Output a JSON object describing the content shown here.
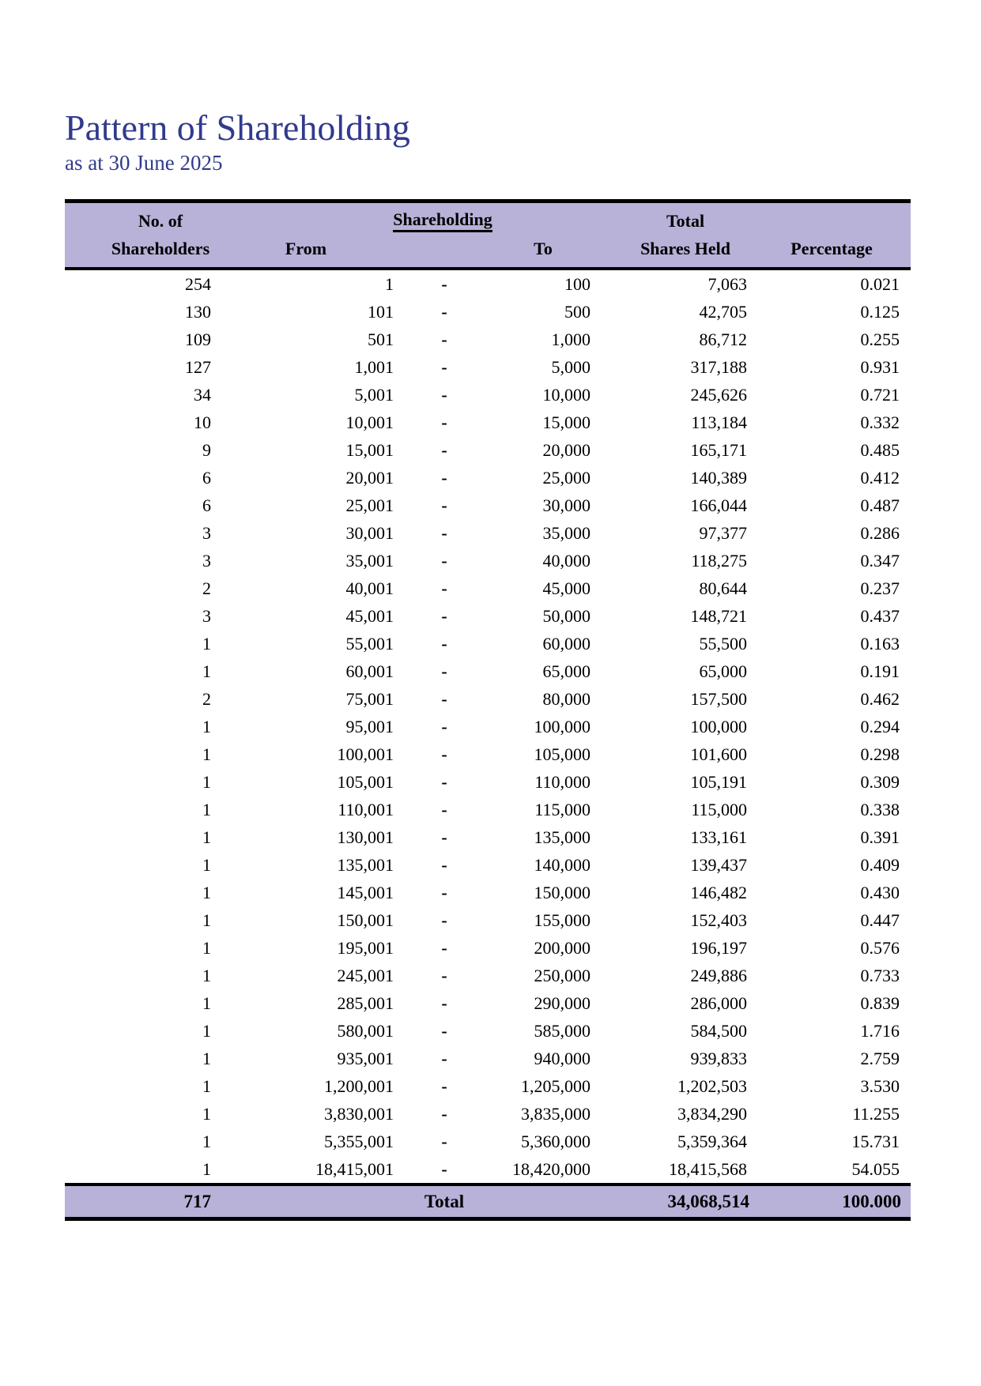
{
  "page": {
    "title": "Pattern of Shareholding",
    "subtitle": "as at 30 June 2025"
  },
  "colors": {
    "title_text": "#313a8d",
    "table_header_bg": "#b8b1d8",
    "table_border": "#000000",
    "body_text": "#000000",
    "page_bg": "#ffffff"
  },
  "table": {
    "headers": {
      "col1_line1": "No. of",
      "col1_line2": "Shareholders",
      "group": "Shareholding",
      "from": "From",
      "to": "To",
      "col5_line1": "Total",
      "col5_line2": "Shares Held",
      "percentage": "Percentage"
    },
    "range_separator": "-",
    "rows": [
      {
        "shareholders": "254",
        "from": "1",
        "to": "100",
        "shares_held": "7,063",
        "percentage": "0.021"
      },
      {
        "shareholders": "130",
        "from": "101",
        "to": "500",
        "shares_held": "42,705",
        "percentage": "0.125"
      },
      {
        "shareholders": "109",
        "from": "501",
        "to": "1,000",
        "shares_held": "86,712",
        "percentage": "0.255"
      },
      {
        "shareholders": "127",
        "from": "1,001",
        "to": "5,000",
        "shares_held": "317,188",
        "percentage": "0.931"
      },
      {
        "shareholders": "34",
        "from": "5,001",
        "to": "10,000",
        "shares_held": "245,626",
        "percentage": "0.721"
      },
      {
        "shareholders": "10",
        "from": "10,001",
        "to": "15,000",
        "shares_held": "113,184",
        "percentage": "0.332"
      },
      {
        "shareholders": "9",
        "from": "15,001",
        "to": "20,000",
        "shares_held": "165,171",
        "percentage": "0.485"
      },
      {
        "shareholders": "6",
        "from": "20,001",
        "to": "25,000",
        "shares_held": "140,389",
        "percentage": "0.412"
      },
      {
        "shareholders": "6",
        "from": "25,001",
        "to": "30,000",
        "shares_held": "166,044",
        "percentage": "0.487"
      },
      {
        "shareholders": "3",
        "from": "30,001",
        "to": "35,000",
        "shares_held": "97,377",
        "percentage": "0.286"
      },
      {
        "shareholders": "3",
        "from": "35,001",
        "to": "40,000",
        "shares_held": "118,275",
        "percentage": "0.347"
      },
      {
        "shareholders": "2",
        "from": "40,001",
        "to": "45,000",
        "shares_held": "80,644",
        "percentage": "0.237"
      },
      {
        "shareholders": "3",
        "from": "45,001",
        "to": "50,000",
        "shares_held": "148,721",
        "percentage": "0.437"
      },
      {
        "shareholders": "1",
        "from": "55,001",
        "to": "60,000",
        "shares_held": "55,500",
        "percentage": "0.163"
      },
      {
        "shareholders": "1",
        "from": "60,001",
        "to": "65,000",
        "shares_held": "65,000",
        "percentage": "0.191"
      },
      {
        "shareholders": "2",
        "from": "75,001",
        "to": "80,000",
        "shares_held": "157,500",
        "percentage": "0.462"
      },
      {
        "shareholders": "1",
        "from": "95,001",
        "to": "100,000",
        "shares_held": "100,000",
        "percentage": "0.294"
      },
      {
        "shareholders": "1",
        "from": "100,001",
        "to": "105,000",
        "shares_held": "101,600",
        "percentage": "0.298"
      },
      {
        "shareholders": "1",
        "from": "105,001",
        "to": "110,000",
        "shares_held": "105,191",
        "percentage": "0.309"
      },
      {
        "shareholders": "1",
        "from": "110,001",
        "to": "115,000",
        "shares_held": "115,000",
        "percentage": "0.338"
      },
      {
        "shareholders": "1",
        "from": "130,001",
        "to": "135,000",
        "shares_held": "133,161",
        "percentage": "0.391"
      },
      {
        "shareholders": "1",
        "from": "135,001",
        "to": "140,000",
        "shares_held": "139,437",
        "percentage": "0.409"
      },
      {
        "shareholders": "1",
        "from": "145,001",
        "to": "150,000",
        "shares_held": "146,482",
        "percentage": "0.430"
      },
      {
        "shareholders": "1",
        "from": "150,001",
        "to": "155,000",
        "shares_held": "152,403",
        "percentage": "0.447"
      },
      {
        "shareholders": "1",
        "from": "195,001",
        "to": "200,000",
        "shares_held": "196,197",
        "percentage": "0.576"
      },
      {
        "shareholders": "1",
        "from": "245,001",
        "to": "250,000",
        "shares_held": "249,886",
        "percentage": "0.733"
      },
      {
        "shareholders": "1",
        "from": "285,001",
        "to": "290,000",
        "shares_held": "286,000",
        "percentage": "0.839"
      },
      {
        "shareholders": "1",
        "from": "580,001",
        "to": "585,000",
        "shares_held": "584,500",
        "percentage": "1.716"
      },
      {
        "shareholders": "1",
        "from": "935,001",
        "to": "940,000",
        "shares_held": "939,833",
        "percentage": "2.759"
      },
      {
        "shareholders": "1",
        "from": "1,200,001",
        "to": "1,205,000",
        "shares_held": "1,202,503",
        "percentage": "3.530"
      },
      {
        "shareholders": "1",
        "from": "3,830,001",
        "to": "3,835,000",
        "shares_held": "3,834,290",
        "percentage": "11.255"
      },
      {
        "shareholders": "1",
        "from": "5,355,001",
        "to": "5,360,000",
        "shares_held": "5,359,364",
        "percentage": "15.731"
      },
      {
        "shareholders": "1",
        "from": "18,415,001",
        "to": "18,420,000",
        "shares_held": "18,415,568",
        "percentage": "54.055"
      }
    ],
    "total": {
      "shareholders": "717",
      "label": "Total",
      "shares_held": "34,068,514",
      "percentage": "100.000"
    }
  }
}
